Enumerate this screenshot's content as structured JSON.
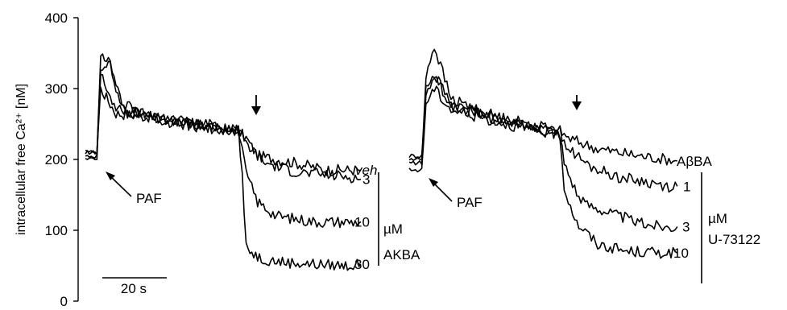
{
  "chart_data": {
    "type": "line",
    "ylabel": "intracellular free Ca²⁺ [nM]",
    "ylim": [
      0,
      400
    ],
    "yticks": [
      0,
      100,
      200,
      300,
      400
    ],
    "scale_bar": "20 s",
    "x_unit": "s",
    "panels": [
      {
        "stimulus_label": "PAF",
        "stimulus_time": 3,
        "inhibitor_added_time": 40,
        "group_label_unit": "µM",
        "group_label_compound": "AKBA",
        "series": [
          {
            "name": "veh",
            "points": [
              [
                0,
                210
              ],
              [
                3,
                210
              ],
              [
                4,
                300
              ],
              [
                8,
                265
              ],
              [
                20,
                258
              ],
              [
                30,
                248
              ],
              [
                40,
                240
              ],
              [
                42,
                230
              ],
              [
                45,
                205
              ],
              [
                55,
                195
              ],
              [
                63,
                185
              ],
              [
                70,
                185
              ],
              [
                72,
                185
              ]
            ]
          },
          {
            "name": "3",
            "points": [
              [
                0,
                210
              ],
              [
                3,
                210
              ],
              [
                4,
                330
              ],
              [
                6,
                340
              ],
              [
                9,
                280
              ],
              [
                20,
                255
              ],
              [
                30,
                245
              ],
              [
                40,
                240
              ],
              [
                42,
                222
              ],
              [
                47,
                195
              ],
              [
                55,
                182
              ],
              [
                70,
                175
              ],
              [
                72,
                172
              ]
            ]
          },
          {
            "name": "10",
            "points": [
              [
                0,
                205
              ],
              [
                3,
                205
              ],
              [
                4,
                340
              ],
              [
                6,
                345
              ],
              [
                10,
                270
              ],
              [
                20,
                255
              ],
              [
                30,
                245
              ],
              [
                40,
                242
              ],
              [
                42,
                180
              ],
              [
                45,
                140
              ],
              [
                50,
                120
              ],
              [
                60,
                112
              ],
              [
                70,
                112
              ],
              [
                72,
                112
              ]
            ]
          },
          {
            "name": "30",
            "points": [
              [
                0,
                200
              ],
              [
                3,
                200
              ],
              [
                4,
                320
              ],
              [
                8,
                270
              ],
              [
                20,
                260
              ],
              [
                30,
                250
              ],
              [
                40,
                245
              ],
              [
                41,
                175
              ],
              [
                42,
                75
              ],
              [
                46,
                60
              ],
              [
                52,
                55
              ],
              [
                60,
                52
              ],
              [
                70,
                50
              ],
              [
                72,
                52
              ]
            ]
          }
        ]
      },
      {
        "stimulus_label": "PAF",
        "stimulus_time": 3,
        "inhibitor_added_time": 36,
        "group_label_unit": "µM",
        "group_label_compound": "U-73122",
        "series": [
          {
            "name": "AβBA",
            "points": [
              [
                0,
                205
              ],
              [
                3,
                205
              ],
              [
                4,
                290
              ],
              [
                6,
                320
              ],
              [
                10,
                280
              ],
              [
                20,
                260
              ],
              [
                30,
                245
              ],
              [
                36,
                240
              ],
              [
                38,
                230
              ],
              [
                45,
                215
              ],
              [
                55,
                205
              ],
              [
                62,
                200
              ],
              [
                64,
                198
              ]
            ]
          },
          {
            "name": "1",
            "points": [
              [
                0,
                200
              ],
              [
                3,
                200
              ],
              [
                4,
                320
              ],
              [
                6,
                360
              ],
              [
                10,
                285
              ],
              [
                20,
                262
              ],
              [
                30,
                248
              ],
              [
                36,
                240
              ],
              [
                38,
                215
              ],
              [
                43,
                190
              ],
              [
                50,
                175
              ],
              [
                62,
                162
              ],
              [
                64,
                162
              ]
            ]
          },
          {
            "name": "3",
            "points": [
              [
                0,
                195
              ],
              [
                3,
                195
              ],
              [
                4,
                300
              ],
              [
                6,
                320
              ],
              [
                10,
                275
              ],
              [
                20,
                258
              ],
              [
                30,
                245
              ],
              [
                36,
                238
              ],
              [
                37,
                195
              ],
              [
                41,
                140
              ],
              [
                48,
                125
              ],
              [
                55,
                110
              ],
              [
                62,
                105
              ],
              [
                64,
                105
              ]
            ]
          },
          {
            "name": "10",
            "points": [
              [
                0,
                185
              ],
              [
                3,
                185
              ],
              [
                4,
                280
              ],
              [
                6,
                300
              ],
              [
                10,
                270
              ],
              [
                20,
                255
              ],
              [
                30,
                240
              ],
              [
                36,
                235
              ],
              [
                37,
                160
              ],
              [
                40,
                110
              ],
              [
                45,
                80
              ],
              [
                52,
                70
              ],
              [
                62,
                68
              ],
              [
                64,
                68
              ]
            ]
          }
        ]
      }
    ]
  }
}
